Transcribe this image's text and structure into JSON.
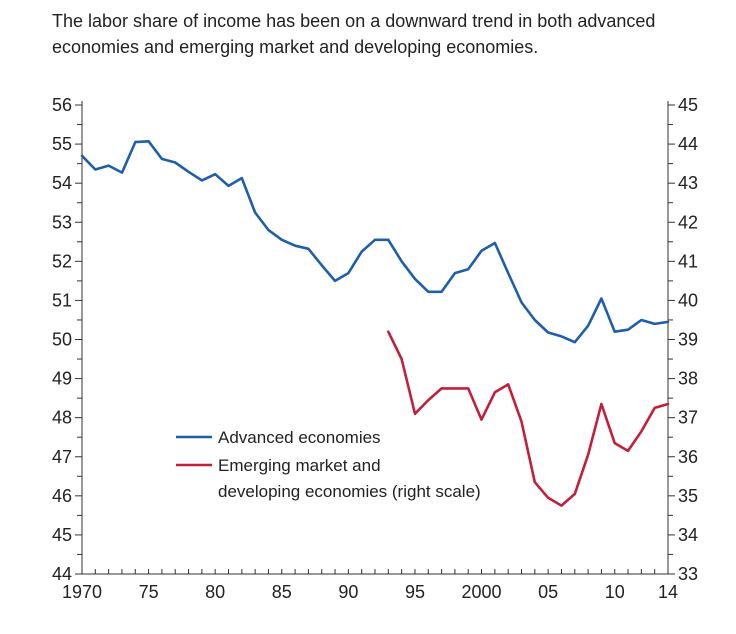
{
  "chart_data": {
    "type": "line",
    "title": "The labor share of income has been on a downward trend in both advanced economies and emerging market and developing economies.",
    "x_ticks": [
      {
        "x": 1970,
        "label": "1970"
      },
      {
        "x": 1975,
        "label": "75"
      },
      {
        "x": 1980,
        "label": "80"
      },
      {
        "x": 1985,
        "label": "85"
      },
      {
        "x": 1990,
        "label": "90"
      },
      {
        "x": 1995,
        "label": "95"
      },
      {
        "x": 2000,
        "label": "2000"
      },
      {
        "x": 2005,
        "label": "05"
      },
      {
        "x": 2010,
        "label": "10"
      },
      {
        "x": 2014,
        "label": "14"
      }
    ],
    "xlim": [
      1970,
      2014
    ],
    "y_left": {
      "ylim": [
        44,
        56
      ],
      "ticks": [
        "44",
        "45",
        "46",
        "47",
        "48",
        "49",
        "50",
        "51",
        "52",
        "53",
        "54",
        "55",
        "56"
      ]
    },
    "y_right": {
      "ylim": [
        33,
        45
      ],
      "ticks": [
        "33",
        "34",
        "35",
        "36",
        "37",
        "38",
        "39",
        "40",
        "41",
        "42",
        "43",
        "44",
        "45"
      ]
    },
    "grid": false,
    "legend_position": "center-left",
    "series": [
      {
        "name": "Advanced economies",
        "axis": "left",
        "color": "#1f5fa8",
        "x": [
          1970,
          1971,
          1972,
          1973,
          1974,
          1975,
          1976,
          1977,
          1978,
          1979,
          1980,
          1981,
          1982,
          1983,
          1984,
          1985,
          1986,
          1987,
          1988,
          1989,
          1990,
          1991,
          1992,
          1993,
          1994,
          1995,
          1996,
          1997,
          1998,
          1999,
          2000,
          2001,
          2002,
          2003,
          2004,
          2005,
          2006,
          2007,
          2008,
          2009,
          2010,
          2011,
          2012,
          2013,
          2014
        ],
        "values": [
          54.7,
          54.35,
          54.45,
          54.27,
          55.05,
          55.07,
          54.62,
          54.53,
          54.29,
          54.07,
          54.23,
          53.93,
          54.13,
          53.25,
          52.8,
          52.55,
          52.4,
          52.32,
          51.9,
          51.5,
          51.7,
          52.25,
          52.55,
          52.55,
          52.0,
          51.55,
          51.22,
          51.22,
          51.7,
          51.8,
          52.27,
          52.47,
          51.7,
          50.95,
          50.5,
          50.18,
          50.08,
          49.93,
          50.35,
          51.05,
          50.2,
          50.25,
          50.5,
          50.4,
          50.45
        ]
      },
      {
        "name": "Emerging market and developing economies (right scale)",
        "legend_lines": [
          "Emerging market and",
          "developing economies (right scale)"
        ],
        "axis": "right",
        "color": "#c2203a",
        "x": [
          1993,
          1994,
          1995,
          1996,
          1997,
          1998,
          1999,
          2000,
          2001,
          2002,
          2003,
          2004,
          2005,
          2006,
          2007,
          2008,
          2009,
          2010,
          2011,
          2012,
          2013,
          2014
        ],
        "values": [
          39.2,
          38.5,
          37.1,
          37.45,
          37.75,
          37.75,
          37.75,
          36.95,
          37.65,
          37.85,
          36.9,
          35.35,
          34.95,
          34.75,
          35.05,
          36.05,
          37.35,
          36.35,
          36.15,
          36.65,
          37.25,
          37.35
        ]
      }
    ]
  }
}
